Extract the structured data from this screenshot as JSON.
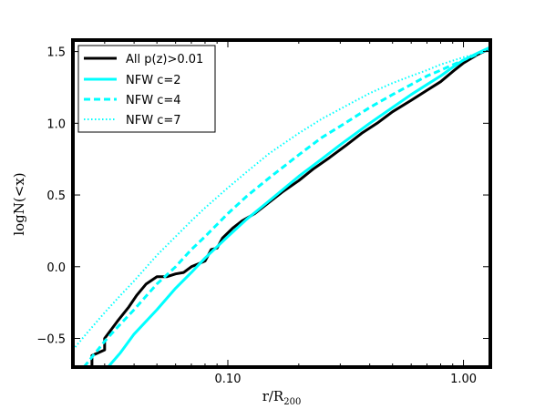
{
  "chart_data": {
    "type": "line",
    "xlabel": "r/R",
    "xlabel_sub": "200",
    "ylabel": "logN(<x)",
    "x_scale": "log",
    "xlim": [
      0.022,
      1.3
    ],
    "ylim": [
      -0.7,
      1.58
    ],
    "xticks": [
      {
        "value": 0.1,
        "label": "0.10"
      },
      {
        "value": 1.0,
        "label": "1.00"
      }
    ],
    "yticks": [
      {
        "value": -0.5,
        "label": "−0.5"
      },
      {
        "value": 0.0,
        "label": "0.0"
      },
      {
        "value": 0.5,
        "label": "0.5"
      },
      {
        "value": 1.0,
        "label": "1.0"
      },
      {
        "value": 1.5,
        "label": "1.5"
      }
    ],
    "legend_position": "top-left",
    "series": [
      {
        "name": "All p(z)>0.01",
        "color": "#000000",
        "style": "solid",
        "points": [
          [
            0.0265,
            -0.7
          ],
          [
            0.0265,
            -0.62
          ],
          [
            0.03,
            -0.58
          ],
          [
            0.03,
            -0.5
          ],
          [
            0.034,
            -0.38
          ],
          [
            0.038,
            -0.28
          ],
          [
            0.041,
            -0.2
          ],
          [
            0.045,
            -0.12
          ],
          [
            0.05,
            -0.07
          ],
          [
            0.055,
            -0.07
          ],
          [
            0.06,
            -0.05
          ],
          [
            0.065,
            -0.04
          ],
          [
            0.07,
            0.0
          ],
          [
            0.075,
            0.02
          ],
          [
            0.08,
            0.04
          ],
          [
            0.085,
            0.12
          ],
          [
            0.09,
            0.13
          ],
          [
            0.095,
            0.2
          ],
          [
            0.105,
            0.27
          ],
          [
            0.115,
            0.32
          ],
          [
            0.13,
            0.37
          ],
          [
            0.15,
            0.45
          ],
          [
            0.17,
            0.52
          ],
          [
            0.2,
            0.6
          ],
          [
            0.23,
            0.68
          ],
          [
            0.27,
            0.76
          ],
          [
            0.32,
            0.85
          ],
          [
            0.37,
            0.93
          ],
          [
            0.43,
            1.0
          ],
          [
            0.5,
            1.08
          ],
          [
            0.6,
            1.16
          ],
          [
            0.7,
            1.23
          ],
          [
            0.8,
            1.29
          ],
          [
            0.9,
            1.36
          ],
          [
            1.0,
            1.42
          ],
          [
            1.15,
            1.48
          ],
          [
            1.3,
            1.52
          ]
        ]
      },
      {
        "name": "NFW c=2",
        "color": "#00ffff",
        "style": "solid",
        "points": [
          [
            0.031,
            -0.7
          ],
          [
            0.035,
            -0.6
          ],
          [
            0.04,
            -0.47
          ],
          [
            0.05,
            -0.3
          ],
          [
            0.06,
            -0.15
          ],
          [
            0.07,
            -0.04
          ],
          [
            0.08,
            0.06
          ],
          [
            0.1,
            0.21
          ],
          [
            0.12,
            0.33
          ],
          [
            0.15,
            0.46
          ],
          [
            0.2,
            0.63
          ],
          [
            0.25,
            0.75
          ],
          [
            0.3,
            0.85
          ],
          [
            0.4,
            1.0
          ],
          [
            0.5,
            1.11
          ],
          [
            0.6,
            1.2
          ],
          [
            0.7,
            1.27
          ],
          [
            0.8,
            1.33
          ],
          [
            0.9,
            1.39
          ],
          [
            1.0,
            1.44
          ],
          [
            1.15,
            1.49
          ],
          [
            1.3,
            1.53
          ]
        ]
      },
      {
        "name": "NFW c=4",
        "color": "#00ffff",
        "style": "dashed",
        "points": [
          [
            0.0245,
            -0.7
          ],
          [
            0.03,
            -0.52
          ],
          [
            0.035,
            -0.4
          ],
          [
            0.04,
            -0.3
          ],
          [
            0.05,
            -0.12
          ],
          [
            0.06,
            0.0
          ],
          [
            0.07,
            0.12
          ],
          [
            0.08,
            0.21
          ],
          [
            0.1,
            0.37
          ],
          [
            0.12,
            0.49
          ],
          [
            0.15,
            0.62
          ],
          [
            0.2,
            0.78
          ],
          [
            0.25,
            0.9
          ],
          [
            0.3,
            0.98
          ],
          [
            0.4,
            1.11
          ],
          [
            0.5,
            1.2
          ],
          [
            0.6,
            1.27
          ],
          [
            0.7,
            1.33
          ],
          [
            0.8,
            1.37
          ],
          [
            1.0,
            1.44
          ],
          [
            1.3,
            1.52
          ]
        ]
      },
      {
        "name": "NFW c=7",
        "color": "#00ffff",
        "style": "dotted",
        "points": [
          [
            0.022,
            -0.58
          ],
          [
            0.025,
            -0.47
          ],
          [
            0.03,
            -0.32
          ],
          [
            0.035,
            -0.2
          ],
          [
            0.04,
            -0.1
          ],
          [
            0.05,
            0.08
          ],
          [
            0.06,
            0.21
          ],
          [
            0.07,
            0.32
          ],
          [
            0.08,
            0.41
          ],
          [
            0.1,
            0.55
          ],
          [
            0.12,
            0.66
          ],
          [
            0.15,
            0.79
          ],
          [
            0.2,
            0.93
          ],
          [
            0.25,
            1.03
          ],
          [
            0.3,
            1.1
          ],
          [
            0.4,
            1.21
          ],
          [
            0.5,
            1.28
          ],
          [
            0.6,
            1.33
          ],
          [
            0.7,
            1.37
          ],
          [
            0.8,
            1.41
          ],
          [
            1.0,
            1.46
          ],
          [
            1.3,
            1.51
          ]
        ]
      }
    ]
  }
}
